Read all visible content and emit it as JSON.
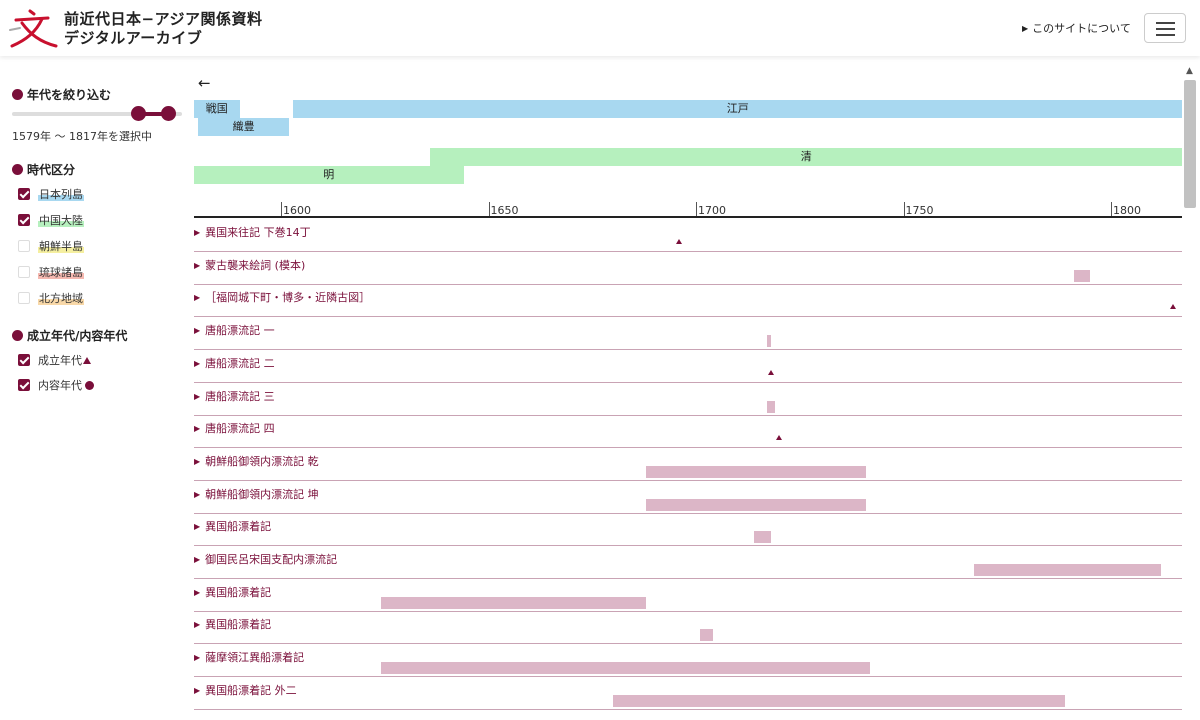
{
  "header": {
    "title_line1": "前近代日本−アジア関係資料",
    "title_line2": "デジタルアーカイブ",
    "about_link": "このサイトについて",
    "logo_icon": "moji-logo-icon",
    "accent_color": "#7a0f3a"
  },
  "sidebar": {
    "year_filter_heading": "年代を絞り込む",
    "year_range_min": 1579,
    "year_range_max": 1817,
    "selection_text": "1579年 〜 1817年を選択中",
    "period_heading": "時代区分",
    "regions": [
      {
        "label": "日本列島",
        "checked": true,
        "highlight": "#a8d8f0"
      },
      {
        "label": "中国大陸",
        "checked": true,
        "highlight": "#b6f0be"
      },
      {
        "label": "朝鮮半島",
        "checked": false,
        "highlight": "#f5efa0"
      },
      {
        "label": "琉球諸島",
        "checked": false,
        "highlight": "#f5b8b0"
      },
      {
        "label": "北方地域",
        "checked": false,
        "highlight": "#f8d8a8"
      }
    ],
    "date_type_heading": "成立年代/内容年代",
    "date_types": [
      {
        "label": "成立年代",
        "checked": true,
        "marker": "triangle"
      },
      {
        "label": "内容年代",
        "checked": true,
        "marker": "circle"
      }
    ]
  },
  "timeline": {
    "start_year": 1579,
    "end_year": 1817,
    "eras": [
      {
        "label": "戦国",
        "start": 1579,
        "end": 1590,
        "lane": 0,
        "color": "#a8d8f0"
      },
      {
        "label": "江戸",
        "start": 1603,
        "end": 1817,
        "lane": 0,
        "color": "#a8d8f0"
      },
      {
        "label": "織豊",
        "start": 1580,
        "end": 1602,
        "lane": 1,
        "color": "#a8d8f0"
      },
      {
        "label": "清",
        "start": 1636,
        "end": 1817,
        "lane": 2,
        "color": "#b6f0be"
      },
      {
        "label": "明",
        "start": 1579,
        "end": 1644,
        "lane": 3,
        "color": "#b6f0be"
      }
    ],
    "ticks": [
      1600,
      1650,
      1700,
      1750,
      1800
    ],
    "rows": [
      {
        "title": "異国来往記 下巻14丁",
        "marks": [
          {
            "kind": "triangle",
            "year": 1696
          }
        ]
      },
      {
        "title": "蒙古襲来絵詞 (模本)",
        "marks": [
          {
            "kind": "bar",
            "start": 1791,
            "end": 1795
          }
        ]
      },
      {
        "title": "［福岡城下町・博多・近隣古図］",
        "marks": [
          {
            "kind": "triangle",
            "year": 1815
          }
        ]
      },
      {
        "title": "唐船漂流記 一",
        "marks": [
          {
            "kind": "bar",
            "start": 1717,
            "end": 1718
          }
        ]
      },
      {
        "title": "唐船漂流記 二",
        "marks": [
          {
            "kind": "triangle",
            "year": 1718
          }
        ]
      },
      {
        "title": "唐船漂流記 三",
        "marks": [
          {
            "kind": "bar",
            "start": 1717,
            "end": 1719
          }
        ]
      },
      {
        "title": "唐船漂流記 四",
        "marks": [
          {
            "kind": "triangle",
            "year": 1720
          }
        ]
      },
      {
        "title": "朝鮮船御領内漂流記 乾",
        "marks": [
          {
            "kind": "bar",
            "start": 1688,
            "end": 1741
          }
        ]
      },
      {
        "title": "朝鮮船御領内漂流記 坤",
        "marks": [
          {
            "kind": "bar",
            "start": 1688,
            "end": 1741
          }
        ]
      },
      {
        "title": "異国船漂着記",
        "marks": [
          {
            "kind": "bar",
            "start": 1714,
            "end": 1718
          }
        ]
      },
      {
        "title": "御国民呂宋国支配内漂流記",
        "marks": [
          {
            "kind": "bar",
            "start": 1767,
            "end": 1812
          }
        ]
      },
      {
        "title": "異国船漂着記",
        "marks": [
          {
            "kind": "bar",
            "start": 1624,
            "end": 1688
          }
        ]
      },
      {
        "title": "異国船漂着記",
        "marks": [
          {
            "kind": "bar",
            "start": 1701,
            "end": 1704
          }
        ]
      },
      {
        "title": "薩摩領江異船漂着記",
        "marks": [
          {
            "kind": "bar",
            "start": 1624,
            "end": 1742
          }
        ]
      },
      {
        "title": "異国船漂着記 外二",
        "marks": [
          {
            "kind": "bar",
            "start": 1680,
            "end": 1789
          }
        ]
      }
    ]
  }
}
